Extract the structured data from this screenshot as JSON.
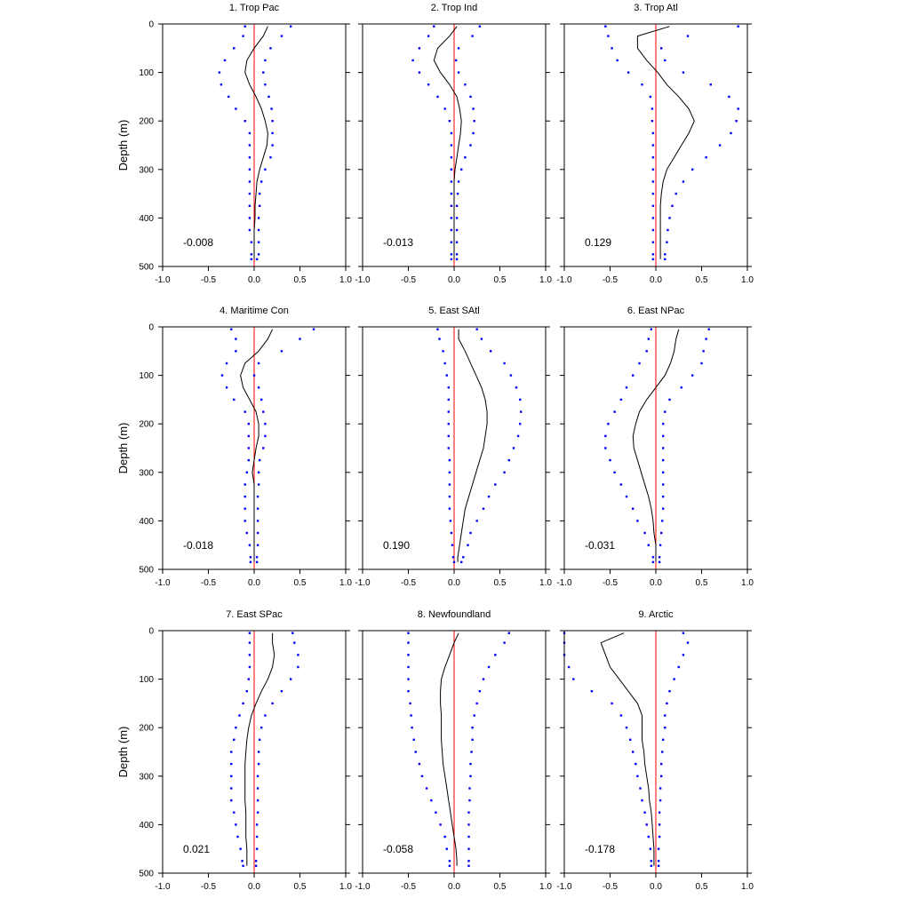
{
  "figure": {
    "ylabel": "Depth (m)",
    "xlim": [
      -1.0,
      1.0
    ],
    "ylim": [
      0,
      500
    ],
    "xticks": [
      -1.0,
      -0.5,
      0.0,
      0.5,
      1.0
    ],
    "xtick_labels": [
      "-1.0",
      "-0.5",
      "0.0",
      "0.5",
      "1.0"
    ],
    "yticks": [
      0,
      100,
      200,
      300,
      400,
      500
    ],
    "ytick_labels": [
      "0",
      "100",
      "200",
      "300",
      "400",
      "500"
    ],
    "colors": {
      "mean_line": "#000000",
      "bounds": "#0000ff",
      "zero_line": "#ff0000"
    }
  },
  "chart_data": [
    {
      "type": "line",
      "title": "1. Trop Pac",
      "value_label": "-0.008",
      "depth": [
        5,
        25,
        50,
        75,
        100,
        125,
        150,
        175,
        200,
        225,
        250,
        275,
        300,
        325,
        350,
        375,
        400,
        425,
        450,
        475,
        485
      ],
      "mean": [
        0.15,
        0.1,
        0.0,
        -0.08,
        -0.1,
        -0.05,
        0.02,
        0.08,
        0.12,
        0.15,
        0.14,
        0.1,
        0.06,
        0.03,
        0.02,
        0.01,
        0.01,
        0.0,
        0.0,
        0.0,
        0.0
      ],
      "lower": [
        -0.1,
        -0.12,
        -0.22,
        -0.32,
        -0.38,
        -0.36,
        -0.28,
        -0.2,
        -0.1,
        -0.05,
        -0.05,
        -0.05,
        -0.05,
        -0.05,
        -0.05,
        -0.05,
        -0.05,
        -0.05,
        -0.03,
        -0.03,
        -0.03
      ],
      "upper": [
        0.4,
        0.3,
        0.18,
        0.12,
        0.1,
        0.12,
        0.16,
        0.19,
        0.2,
        0.2,
        0.2,
        0.18,
        0.12,
        0.08,
        0.06,
        0.06,
        0.05,
        0.05,
        0.05,
        0.05,
        0.03
      ]
    },
    {
      "type": "line",
      "title": "2. Trop Ind",
      "value_label": "-0.013",
      "depth": [
        5,
        25,
        50,
        75,
        100,
        125,
        150,
        175,
        200,
        225,
        250,
        275,
        300,
        325,
        350,
        375,
        400,
        425,
        450,
        475,
        485
      ],
      "mean": [
        0.03,
        -0.05,
        -0.18,
        -0.22,
        -0.15,
        -0.05,
        0.03,
        0.06,
        0.08,
        0.07,
        0.05,
        0.03,
        0.01,
        0.0,
        0.0,
        0.0,
        0.0,
        0.0,
        0.0,
        0.0,
        0.0
      ],
      "lower": [
        -0.22,
        -0.28,
        -0.38,
        -0.45,
        -0.38,
        -0.28,
        -0.18,
        -0.1,
        -0.05,
        -0.03,
        -0.03,
        -0.03,
        -0.03,
        -0.03,
        -0.03,
        -0.03,
        -0.03,
        -0.03,
        -0.03,
        -0.03,
        -0.03
      ],
      "upper": [
        0.28,
        0.2,
        0.05,
        0.02,
        0.05,
        0.12,
        0.18,
        0.21,
        0.22,
        0.21,
        0.18,
        0.12,
        0.08,
        0.05,
        0.04,
        0.03,
        0.03,
        0.03,
        0.03,
        0.03,
        0.03
      ]
    },
    {
      "type": "line",
      "title": "3. Trop Atl",
      "value_label": "0.129",
      "depth": [
        5,
        25,
        50,
        75,
        100,
        125,
        150,
        175,
        200,
        225,
        250,
        275,
        300,
        325,
        350,
        375,
        400,
        425,
        450,
        475,
        485
      ],
      "mean": [
        0.15,
        -0.2,
        -0.2,
        -0.1,
        0.02,
        0.12,
        0.25,
        0.36,
        0.42,
        0.36,
        0.28,
        0.2,
        0.12,
        0.08,
        0.06,
        0.05,
        0.05,
        0.05,
        0.05,
        0.05,
        0.05
      ],
      "lower": [
        -0.55,
        -0.52,
        -0.48,
        -0.42,
        -0.3,
        -0.15,
        -0.06,
        -0.04,
        -0.04,
        -0.03,
        -0.03,
        -0.03,
        -0.03,
        -0.03,
        -0.03,
        -0.03,
        -0.03,
        -0.03,
        -0.03,
        -0.03,
        -0.03
      ],
      "upper": [
        0.9,
        0.35,
        0.06,
        0.1,
        0.3,
        0.6,
        0.8,
        0.9,
        0.88,
        0.82,
        0.7,
        0.55,
        0.4,
        0.3,
        0.22,
        0.18,
        0.15,
        0.13,
        0.12,
        0.1,
        0.1
      ]
    },
    {
      "type": "line",
      "title": "4. Maritime Con",
      "value_label": "-0.018",
      "depth": [
        5,
        25,
        50,
        75,
        100,
        125,
        150,
        175,
        200,
        225,
        250,
        275,
        300,
        325,
        350,
        375,
        400,
        425,
        450,
        475,
        485
      ],
      "mean": [
        0.2,
        0.15,
        0.05,
        -0.1,
        -0.15,
        -0.12,
        -0.05,
        0.02,
        0.05,
        0.05,
        0.02,
        0.0,
        -0.02,
        0.0,
        0.0,
        0.0,
        0.0,
        0.0,
        0.0,
        0.0,
        0.0
      ],
      "lower": [
        -0.25,
        -0.2,
        -0.2,
        -0.3,
        -0.35,
        -0.3,
        -0.22,
        -0.1,
        -0.06,
        -0.06,
        -0.06,
        -0.06,
        -0.08,
        -0.1,
        -0.1,
        -0.1,
        -0.1,
        -0.08,
        -0.05,
        -0.04,
        -0.04
      ],
      "upper": [
        0.65,
        0.5,
        0.3,
        0.05,
        0.0,
        0.05,
        0.08,
        0.1,
        0.12,
        0.12,
        0.1,
        0.06,
        0.05,
        0.05,
        0.04,
        0.04,
        0.04,
        0.04,
        0.04,
        0.03,
        0.03
      ]
    },
    {
      "type": "line",
      "title": "5. East SAtl",
      "value_label": "0.190",
      "depth": [
        5,
        25,
        50,
        75,
        100,
        125,
        150,
        175,
        200,
        225,
        250,
        275,
        300,
        325,
        350,
        375,
        400,
        425,
        450,
        475,
        485
      ],
      "mean": [
        0.05,
        0.05,
        0.12,
        0.18,
        0.24,
        0.3,
        0.34,
        0.36,
        0.36,
        0.34,
        0.32,
        0.28,
        0.24,
        0.2,
        0.16,
        0.12,
        0.1,
        0.08,
        0.06,
        0.04,
        0.04
      ],
      "lower": [
        -0.18,
        -0.16,
        -0.12,
        -0.1,
        -0.08,
        -0.06,
        -0.06,
        -0.06,
        -0.06,
        -0.06,
        -0.06,
        -0.05,
        -0.05,
        -0.05,
        -0.05,
        -0.05,
        -0.04,
        -0.03,
        -0.02,
        -0.01,
        0.0
      ],
      "upper": [
        0.25,
        0.3,
        0.4,
        0.55,
        0.62,
        0.68,
        0.72,
        0.73,
        0.72,
        0.7,
        0.65,
        0.6,
        0.55,
        0.45,
        0.38,
        0.32,
        0.25,
        0.18,
        0.15,
        0.1,
        0.08
      ]
    },
    {
      "type": "line",
      "title": "6. East NPac",
      "value_label": "-0.031",
      "depth": [
        5,
        25,
        50,
        75,
        100,
        125,
        150,
        175,
        200,
        225,
        250,
        275,
        300,
        325,
        350,
        375,
        400,
        425,
        450,
        475,
        485
      ],
      "mean": [
        0.25,
        0.22,
        0.2,
        0.16,
        0.1,
        0.0,
        -0.1,
        -0.18,
        -0.22,
        -0.25,
        -0.24,
        -0.2,
        -0.16,
        -0.12,
        -0.08,
        -0.05,
        -0.03,
        -0.02,
        0.0,
        0.0,
        0.0
      ],
      "lower": [
        -0.05,
        -0.08,
        -0.1,
        -0.18,
        -0.25,
        -0.32,
        -0.38,
        -0.45,
        -0.52,
        -0.55,
        -0.55,
        -0.5,
        -0.45,
        -0.38,
        -0.32,
        -0.25,
        -0.2,
        -0.12,
        -0.08,
        -0.03,
        -0.03
      ],
      "upper": [
        0.58,
        0.55,
        0.52,
        0.5,
        0.4,
        0.28,
        0.15,
        0.1,
        0.08,
        0.08,
        0.08,
        0.08,
        0.08,
        0.08,
        0.08,
        0.08,
        0.07,
        0.06,
        0.05,
        0.04,
        0.04
      ]
    },
    {
      "type": "line",
      "title": "7. East SPac",
      "value_label": "0.021",
      "depth": [
        5,
        25,
        50,
        75,
        100,
        125,
        150,
        175,
        200,
        225,
        250,
        275,
        300,
        325,
        350,
        375,
        400,
        425,
        450,
        475,
        485
      ],
      "mean": [
        0.2,
        0.2,
        0.22,
        0.2,
        0.15,
        0.08,
        0.02,
        -0.03,
        -0.06,
        -0.08,
        -0.09,
        -0.1,
        -0.1,
        -0.1,
        -0.1,
        -0.09,
        -0.09,
        -0.09,
        -0.08,
        -0.08,
        -0.08
      ],
      "lower": [
        -0.05,
        -0.05,
        -0.05,
        -0.05,
        -0.06,
        -0.08,
        -0.12,
        -0.16,
        -0.2,
        -0.22,
        -0.25,
        -0.25,
        -0.25,
        -0.25,
        -0.25,
        -0.22,
        -0.2,
        -0.18,
        -0.15,
        -0.13,
        -0.12
      ],
      "upper": [
        0.42,
        0.44,
        0.48,
        0.48,
        0.4,
        0.3,
        0.2,
        0.12,
        0.08,
        0.06,
        0.05,
        0.05,
        0.04,
        0.04,
        0.04,
        0.04,
        0.03,
        0.03,
        0.03,
        0.02,
        0.02
      ]
    },
    {
      "type": "line",
      "title": "8. Newfoundland",
      "value_label": "-0.058",
      "depth": [
        5,
        25,
        50,
        75,
        100,
        125,
        150,
        175,
        200,
        225,
        250,
        275,
        300,
        325,
        350,
        375,
        400,
        425,
        450,
        475,
        485
      ],
      "mean": [
        0.05,
        0.0,
        -0.05,
        -0.1,
        -0.14,
        -0.15,
        -0.15,
        -0.14,
        -0.14,
        -0.14,
        -0.13,
        -0.12,
        -0.1,
        -0.08,
        -0.06,
        -0.04,
        -0.02,
        0.0,
        0.02,
        0.03,
        0.03
      ],
      "lower": [
        -0.5,
        -0.5,
        -0.5,
        -0.5,
        -0.5,
        -0.5,
        -0.48,
        -0.47,
        -0.46,
        -0.44,
        -0.42,
        -0.38,
        -0.35,
        -0.3,
        -0.25,
        -0.2,
        -0.15,
        -0.1,
        -0.08,
        -0.05,
        -0.05
      ],
      "upper": [
        0.6,
        0.55,
        0.45,
        0.38,
        0.32,
        0.28,
        0.25,
        0.22,
        0.2,
        0.2,
        0.19,
        0.18,
        0.18,
        0.17,
        0.17,
        0.16,
        0.16,
        0.16,
        0.16,
        0.16,
        0.16
      ]
    },
    {
      "type": "line",
      "title": "9. Arctic",
      "value_label": "-0.178",
      "depth": [
        5,
        25,
        50,
        75,
        100,
        125,
        150,
        175,
        200,
        225,
        250,
        275,
        300,
        325,
        350,
        375,
        400,
        425,
        450,
        475,
        485
      ],
      "mean": [
        -0.35,
        -0.6,
        -0.55,
        -0.5,
        -0.4,
        -0.3,
        -0.2,
        -0.15,
        -0.15,
        -0.15,
        -0.13,
        -0.12,
        -0.1,
        -0.08,
        -0.07,
        -0.05,
        -0.04,
        -0.03,
        -0.02,
        -0.02,
        -0.02
      ],
      "lower": [
        -1.0,
        -1.0,
        -1.0,
        -0.95,
        -0.9,
        -0.7,
        -0.48,
        -0.38,
        -0.32,
        -0.28,
        -0.25,
        -0.22,
        -0.2,
        -0.17,
        -0.15,
        -0.12,
        -0.1,
        -0.08,
        -0.06,
        -0.05,
        -0.05
      ],
      "upper": [
        0.3,
        0.35,
        0.3,
        0.25,
        0.2,
        0.15,
        0.12,
        0.1,
        0.1,
        0.08,
        0.07,
        0.06,
        0.06,
        0.05,
        0.05,
        0.04,
        0.04,
        0.04,
        0.03,
        0.03,
        0.03
      ]
    }
  ]
}
